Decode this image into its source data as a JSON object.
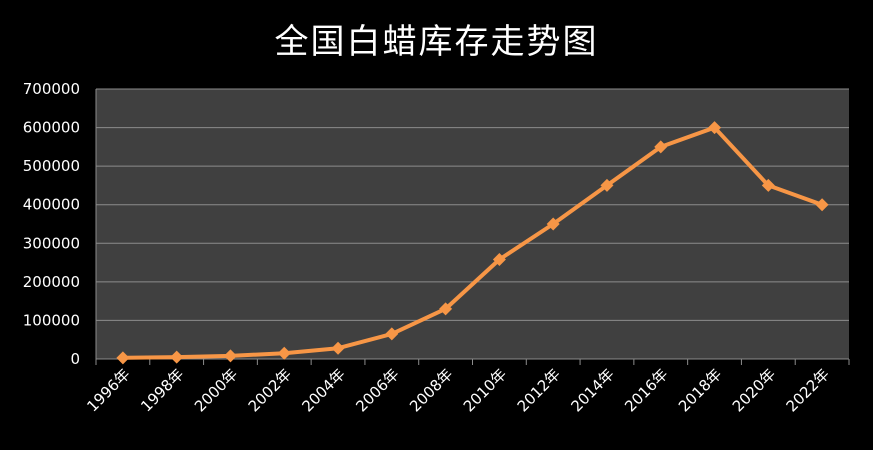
{
  "chart_data": {
    "type": "line",
    "title": "全国白蜡库存走势图",
    "xlabel": "",
    "ylabel": "",
    "categories": [
      "1996年",
      "1998年",
      "2000年",
      "2002年",
      "2004年",
      "2006年",
      "2008年",
      "2010年",
      "2012年",
      "2014年",
      "2016年",
      "2018年",
      "2020年",
      "2022年"
    ],
    "series": [
      {
        "values": [
          3000,
          5000,
          8000,
          15000,
          28000,
          65000,
          130000,
          258000,
          350000,
          450000,
          550000,
          600000,
          450000,
          400000
        ]
      }
    ],
    "ylim": [
      0,
      700000
    ],
    "yticks": [
      "0",
      "100000",
      "200000",
      "300000",
      "400000",
      "500000",
      "600000",
      "700000"
    ],
    "grid": true,
    "legend": "none",
    "colors": {
      "background": "#000000",
      "plot_area": "#404040",
      "line": "#f79646",
      "grid": "#8c8c8c",
      "text": "#ffffff"
    }
  }
}
